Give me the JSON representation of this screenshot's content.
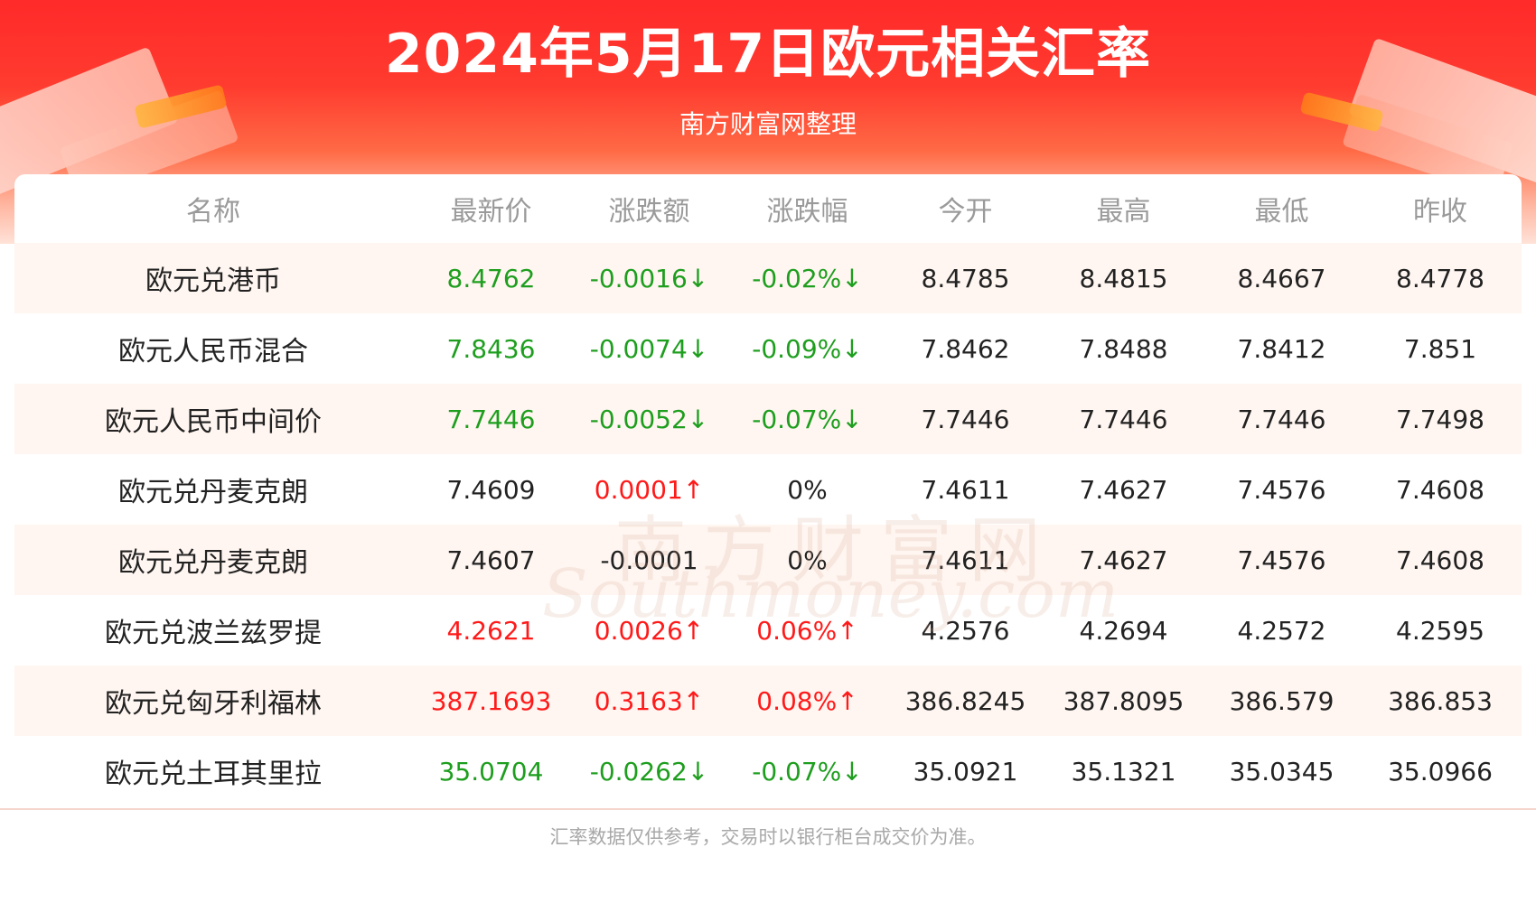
{
  "header": {
    "title": "2024年5月17日欧元相关汇率",
    "subtitle": "南方财富网整理"
  },
  "table": {
    "columns": [
      "名称",
      "最新价",
      "涨跌额",
      "涨跌幅",
      "今开",
      "最高",
      "最低",
      "昨收"
    ],
    "rows": [
      {
        "name": "欧元兑港币",
        "latest": "8.4762",
        "change": "-0.0016↓",
        "pct": "-0.02%↓",
        "open": "8.4785",
        "high": "8.4815",
        "low": "8.4667",
        "prev": "8.4778",
        "trend": "down"
      },
      {
        "name": "欧元人民币混合",
        "latest": "7.8436",
        "change": "-0.0074↓",
        "pct": "-0.09%↓",
        "open": "7.8462",
        "high": "7.8488",
        "low": "7.8412",
        "prev": "7.851",
        "trend": "down"
      },
      {
        "name": "欧元人民币中间价",
        "latest": "7.7446",
        "change": "-0.0052↓",
        "pct": "-0.07%↓",
        "open": "7.7446",
        "high": "7.7446",
        "low": "7.7446",
        "prev": "7.7498",
        "trend": "down"
      },
      {
        "name": "欧元兑丹麦克朗",
        "latest": "7.4609",
        "change": "0.0001↑",
        "pct": "0%",
        "open": "7.4611",
        "high": "7.4627",
        "low": "7.4576",
        "prev": "7.4608",
        "trend": "flat-up"
      },
      {
        "name": "欧元兑丹麦克朗",
        "latest": "7.4607",
        "change": "-0.0001",
        "pct": "0%",
        "open": "7.4611",
        "high": "7.4627",
        "low": "7.4576",
        "prev": "7.4608",
        "trend": "flat"
      },
      {
        "name": "欧元兑波兰兹罗提",
        "latest": "4.2621",
        "change": "0.0026↑",
        "pct": "0.06%↑",
        "open": "4.2576",
        "high": "4.2694",
        "low": "4.2572",
        "prev": "4.2595",
        "trend": "up"
      },
      {
        "name": "欧元兑匈牙利福林",
        "latest": "387.1693",
        "change": "0.3163↑",
        "pct": "0.08%↑",
        "open": "386.8245",
        "high": "387.8095",
        "low": "386.579",
        "prev": "386.853",
        "trend": "up"
      },
      {
        "name": "欧元兑土耳其里拉",
        "latest": "35.0704",
        "change": "-0.0262↓",
        "pct": "-0.07%↓",
        "open": "35.0921",
        "high": "35.1321",
        "low": "35.0345",
        "prev": "35.0966",
        "trend": "down"
      }
    ]
  },
  "watermark": {
    "cn": "南方财富网",
    "en": "Southmoney.com"
  },
  "footer": {
    "note": "汇率数据仅供参考，交易时以银行柜台成交价为准。"
  },
  "colors": {
    "up": "#ff1a1a",
    "down": "#1e9e1e",
    "header_red": "#ff2a2a"
  }
}
